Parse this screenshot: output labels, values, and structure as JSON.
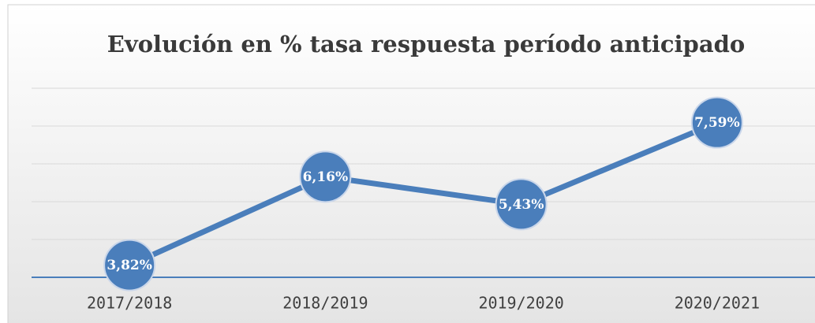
{
  "chart_data": {
    "type": "line",
    "title": "Evolución en % tasa respuesta período anticipado",
    "categories": [
      "2017/2018",
      "2018/2019",
      "2019/2020",
      "2020/2021"
    ],
    "series": [
      {
        "name": "Tasa respuesta",
        "color": "#4a7ebb",
        "values": [
          3.82,
          6.16,
          5.43,
          7.59
        ],
        "value_labels": [
          "3,82%",
          "6,16%",
          "5,43%",
          "7,59%"
        ]
      }
    ],
    "ylim": [
      3.5,
      8.5
    ]
  }
}
